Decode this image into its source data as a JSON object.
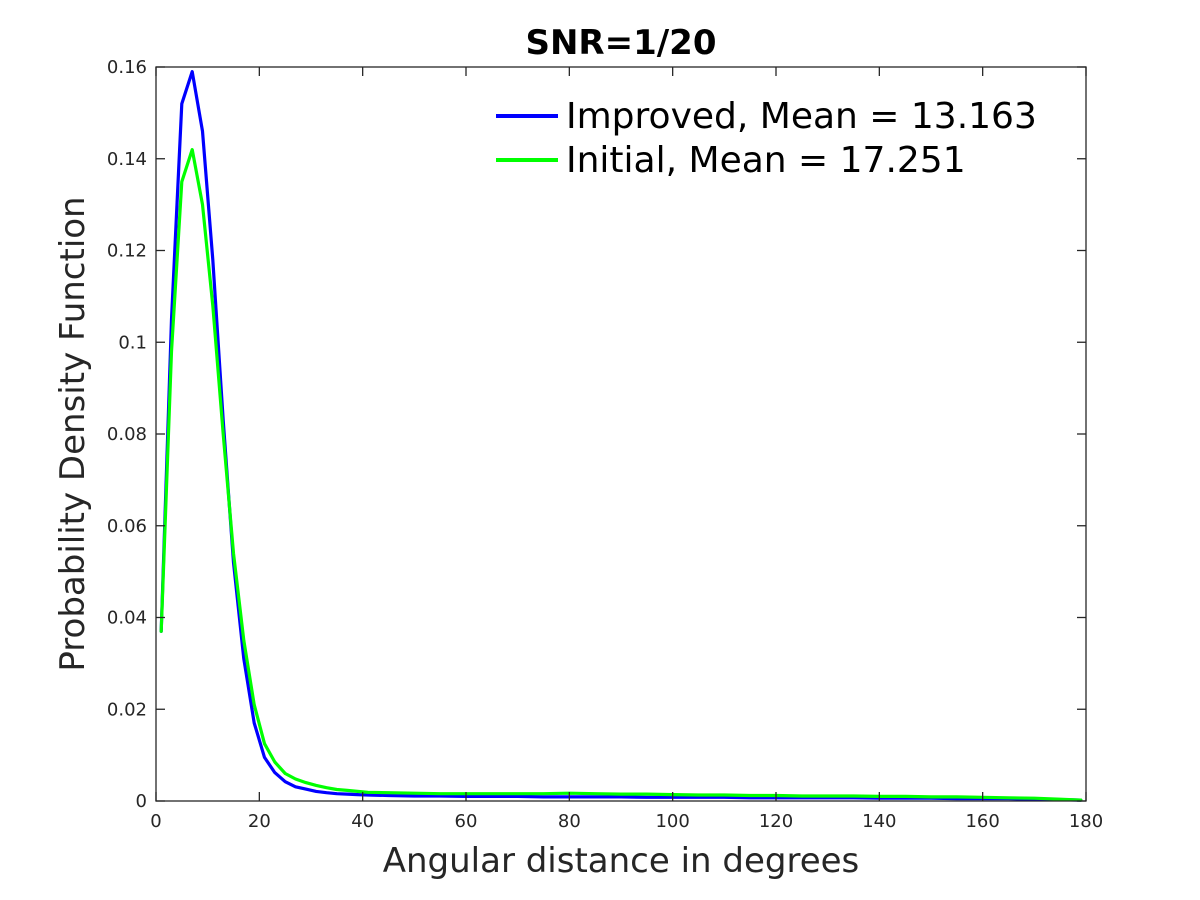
{
  "chart_data": {
    "type": "line",
    "title": "SNR=1/20",
    "xlabel": "Angular distance in degrees",
    "ylabel": "Probability Density Function",
    "xlim": [
      0,
      180
    ],
    "ylim": [
      0,
      0.16
    ],
    "x_ticks": [
      0,
      20,
      40,
      60,
      80,
      100,
      120,
      140,
      160,
      180
    ],
    "y_ticks": [
      0,
      0.02,
      0.04,
      0.06,
      0.08,
      0.1,
      0.12,
      0.14,
      0.16
    ],
    "x_tick_labels": [
      "0",
      "20",
      "40",
      "60",
      "80",
      "100",
      "120",
      "140",
      "160",
      "180"
    ],
    "y_tick_labels": [
      "0",
      "0.02",
      "0.04",
      "0.06",
      "0.08",
      "0.1",
      "0.12",
      "0.14",
      "0.16"
    ],
    "grid": false,
    "legend_position": "top-right",
    "series": [
      {
        "name": "Improved, Mean = 13.163",
        "color": "#0000ff",
        "x": [
          1,
          3,
          5,
          7,
          9,
          11,
          13,
          15,
          17,
          19,
          21,
          23,
          25,
          27,
          29,
          31,
          33,
          35,
          37,
          39,
          41,
          45,
          50,
          55,
          60,
          65,
          70,
          75,
          80,
          85,
          90,
          95,
          100,
          105,
          110,
          115,
          120,
          125,
          130,
          135,
          140,
          145,
          150,
          155,
          160,
          165,
          170,
          175,
          179
        ],
        "y": [
          0.037,
          0.105,
          0.152,
          0.159,
          0.146,
          0.118,
          0.083,
          0.052,
          0.031,
          0.017,
          0.0095,
          0.0062,
          0.0042,
          0.0031,
          0.0026,
          0.0021,
          0.0018,
          0.0016,
          0.0015,
          0.0014,
          0.0013,
          0.0012,
          0.0011,
          0.0011,
          0.001,
          0.001,
          0.001,
          0.0009,
          0.0009,
          0.0009,
          0.0009,
          0.0008,
          0.0008,
          0.0008,
          0.0008,
          0.0007,
          0.0007,
          0.0007,
          0.0007,
          0.0007,
          0.0006,
          0.0006,
          0.0006,
          0.0005,
          0.0005,
          0.0005,
          0.0004,
          0.0003,
          0.0002
        ]
      },
      {
        "name": "Initial, Mean = 17.251",
        "color": "#00ff00",
        "x": [
          1,
          3,
          5,
          7,
          9,
          11,
          13,
          15,
          17,
          19,
          21,
          23,
          25,
          27,
          29,
          31,
          33,
          35,
          37,
          39,
          41,
          45,
          50,
          55,
          60,
          65,
          70,
          75,
          80,
          85,
          90,
          95,
          100,
          105,
          110,
          115,
          120,
          125,
          130,
          135,
          140,
          145,
          150,
          155,
          160,
          165,
          170,
          175,
          179
        ],
        "y": [
          0.037,
          0.098,
          0.135,
          0.142,
          0.13,
          0.108,
          0.08,
          0.054,
          0.035,
          0.021,
          0.0125,
          0.0085,
          0.006,
          0.0048,
          0.004,
          0.0034,
          0.0029,
          0.0025,
          0.0023,
          0.0021,
          0.0019,
          0.0018,
          0.0017,
          0.0016,
          0.0016,
          0.0016,
          0.0016,
          0.0016,
          0.0017,
          0.0016,
          0.0015,
          0.0015,
          0.0014,
          0.0013,
          0.0013,
          0.0012,
          0.0012,
          0.0011,
          0.0011,
          0.0011,
          0.001,
          0.001,
          0.0009,
          0.0009,
          0.0008,
          0.0007,
          0.0006,
          0.0004,
          0.0002
        ]
      }
    ]
  }
}
